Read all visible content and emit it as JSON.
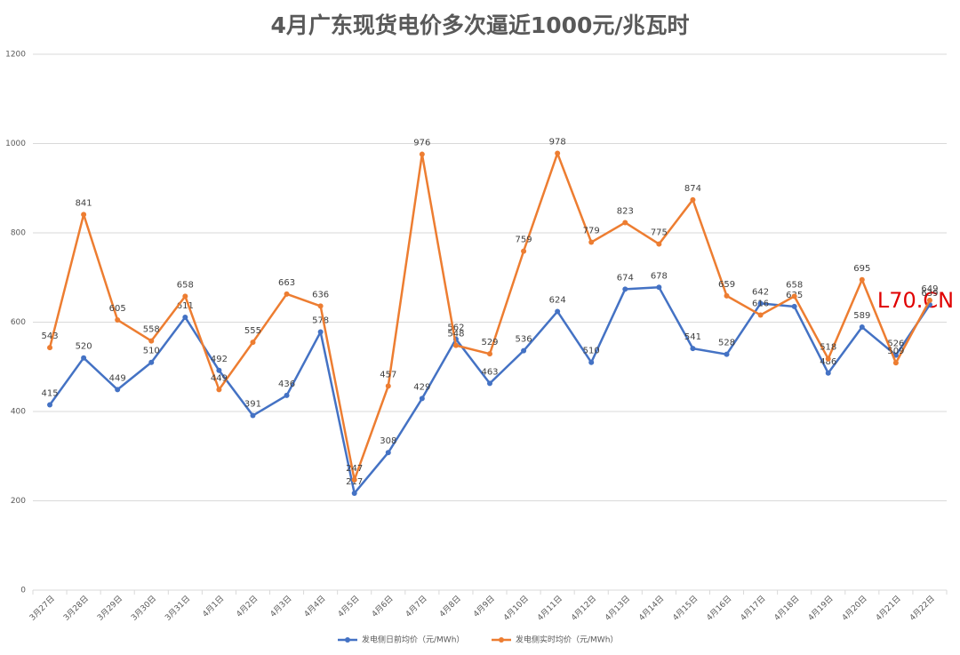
{
  "chart_data": {
    "type": "line",
    "title": "4月广东现货电价多次逼近1000元/兆瓦时",
    "watermark": "L70.CN",
    "categories": [
      "3月27日",
      "3月28日",
      "3月29日",
      "3月30日",
      "3月31日",
      "4月1日",
      "4月2日",
      "4月3日",
      "4月4日",
      "4月5日",
      "4月6日",
      "4月7日",
      "4月8日",
      "4月9日",
      "4月10日",
      "4月11日",
      "4月12日",
      "4月13日",
      "4月14日",
      "4月15日",
      "4月16日",
      "4月17日",
      "4月18日",
      "4月19日",
      "4月20日",
      "4月21日",
      "4月22日"
    ],
    "series": [
      {
        "name": "发电侧日前均价（元/MWh）",
        "color": "#4472c4",
        "values": [
          415,
          520,
          449,
          510,
          611,
          492,
          391,
          436,
          578,
          217,
          308,
          429,
          562,
          463,
          536,
          624,
          510,
          674,
          678,
          541,
          528,
          642,
          635,
          486,
          589,
          526,
          639
        ]
      },
      {
        "name": "发电侧实时均价（元/MWh）",
        "color": "#ed7d31",
        "values": [
          543,
          841,
          605,
          558,
          658,
          449,
          555,
          663,
          636,
          247,
          457,
          976,
          548,
          529,
          759,
          978,
          779,
          823,
          775,
          874,
          659,
          616,
          658,
          518,
          695,
          509,
          649
        ]
      }
    ],
    "ylim": [
      0,
      1200
    ],
    "yticks": [
      0,
      200,
      400,
      600,
      800,
      1000,
      1200
    ],
    "grid": true,
    "legend": "bottom"
  }
}
